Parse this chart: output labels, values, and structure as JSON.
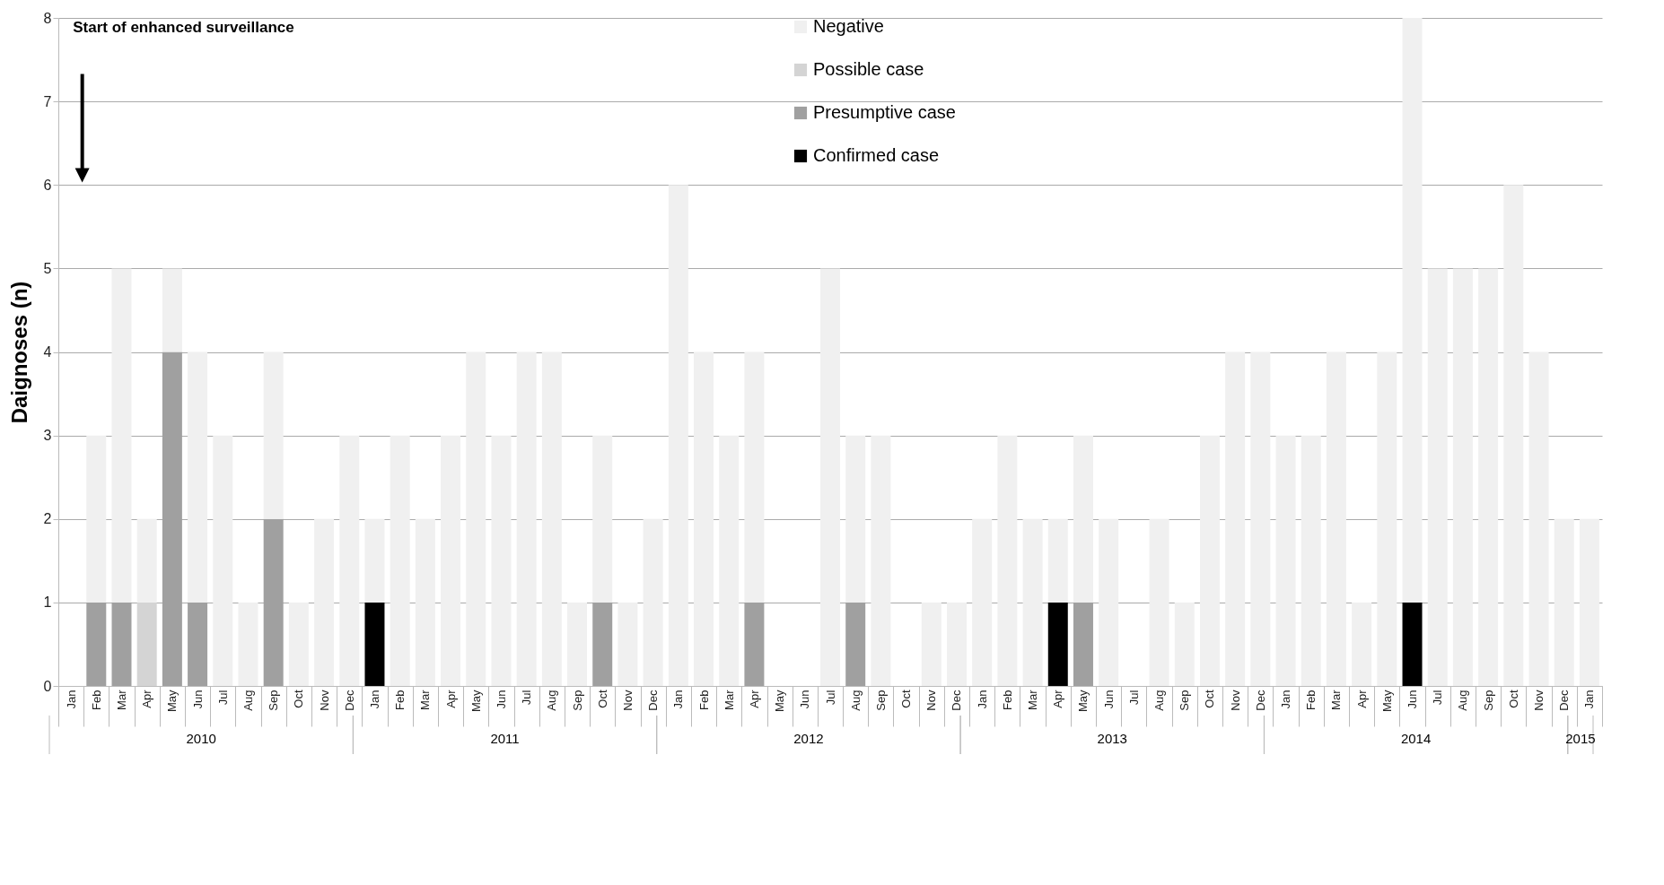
{
  "chart_data": {
    "type": "bar",
    "stacked": true,
    "ylabel": "Daignoses (n)",
    "categories": [
      "Jan",
      "Feb",
      "Mar",
      "Apr",
      "May",
      "Jun",
      "Jul",
      "Aug",
      "Sep",
      "Oct",
      "Nov",
      "Dec",
      "Jan",
      "Feb",
      "Mar",
      "Apr",
      "May",
      "Jun",
      "Jul",
      "Aug",
      "Sep",
      "Oct",
      "Nov",
      "Dec",
      "Jan",
      "Feb",
      "Mar",
      "Apr",
      "May",
      "Jun",
      "Jul",
      "Aug",
      "Sep",
      "Oct",
      "Nov",
      "Dec",
      "Jan",
      "Feb",
      "Mar",
      "Apr",
      "May",
      "Jun",
      "Jul",
      "Aug",
      "Sep",
      "Oct",
      "Nov",
      "Dec",
      "Jan",
      "Feb",
      "Mar",
      "Apr",
      "May",
      "Jun",
      "Jul",
      "Aug",
      "Sep",
      "Oct",
      "Nov",
      "Dec",
      "Jan"
    ],
    "series": [
      {
        "name": "Confirmed case",
        "color": "#000000",
        "values": [
          0,
          0,
          0,
          0,
          0,
          0,
          0,
          0,
          0,
          0,
          0,
          0,
          1,
          0,
          0,
          0,
          0,
          0,
          0,
          0,
          0,
          0,
          0,
          0,
          0,
          0,
          0,
          0,
          0,
          0,
          0,
          0,
          0,
          0,
          0,
          0,
          0,
          0,
          0,
          1,
          0,
          0,
          0,
          0,
          0,
          0,
          0,
          0,
          0,
          0,
          0,
          0,
          0,
          1,
          0,
          0,
          0,
          0,
          0,
          0,
          0
        ]
      },
      {
        "name": "Presumptive case",
        "color": "#a0a0a0",
        "values": [
          0,
          1,
          1,
          0,
          4,
          1,
          0,
          0,
          2,
          0,
          0,
          0,
          0,
          0,
          0,
          0,
          0,
          0,
          0,
          0,
          0,
          1,
          0,
          0,
          0,
          0,
          0,
          1,
          0,
          0,
          0,
          1,
          0,
          0,
          0,
          0,
          0,
          0,
          0,
          0,
          1,
          0,
          0,
          0,
          0,
          0,
          0,
          0,
          0,
          0,
          0,
          0,
          0,
          0,
          0,
          0,
          0,
          0,
          0,
          0,
          0
        ]
      },
      {
        "name": "Possible case",
        "color": "#d4d4d4",
        "values": [
          0,
          0,
          0,
          1,
          0,
          0,
          0,
          0,
          0,
          0,
          0,
          0,
          0,
          0,
          0,
          0,
          0,
          0,
          0,
          0,
          0,
          0,
          0,
          0,
          0,
          0,
          0,
          0,
          0,
          0,
          0,
          0,
          0,
          0,
          0,
          0,
          0,
          0,
          0,
          0,
          0,
          0,
          0,
          0,
          0,
          0,
          0,
          0,
          0,
          0,
          0,
          0,
          0,
          0,
          0,
          0,
          0,
          0,
          0,
          0,
          0
        ]
      },
      {
        "name": "Negative",
        "color": "#f0f0f0",
        "values": [
          0,
          2,
          4,
          1,
          1,
          3,
          3,
          1,
          2,
          1,
          2,
          3,
          1,
          3,
          2,
          3,
          4,
          3,
          4,
          4,
          1,
          2,
          1,
          2,
          6,
          4,
          3,
          3,
          0,
          0,
          5,
          2,
          3,
          0,
          1,
          1,
          2,
          3,
          2,
          1,
          2,
          2,
          0,
          2,
          1,
          3,
          4,
          4,
          3,
          3,
          4,
          1,
          4,
          7,
          5,
          5,
          5,
          6,
          4,
          2,
          2
        ]
      }
    ],
    "ylim": [
      0,
      8
    ],
    "yticks": [
      0,
      1,
      2,
      3,
      4,
      5,
      6,
      7,
      8
    ],
    "grid": "y",
    "legend": "top",
    "annotations": [
      "Start of enhanced surveillance",
      "2010",
      "2011",
      "2012",
      "2013",
      "2014",
      "2015"
    ]
  }
}
